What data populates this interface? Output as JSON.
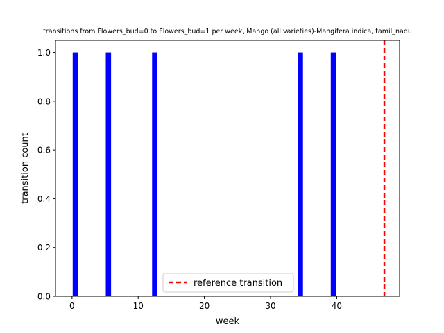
{
  "chart_data": {
    "type": "bar",
    "title": "transitions from Flowers_bud=0 to Flowers_bud=1 per week, Mango (all varieties)-Mangifera indica, tamil_nadu",
    "xlabel": "week",
    "ylabel": "transition count",
    "xlim": [
      -2.5,
      49.5
    ],
    "ylim": [
      0,
      1.05
    ],
    "xticks": [
      0,
      10,
      20,
      30,
      40
    ],
    "yticks": [
      0.0,
      0.2,
      0.4,
      0.6,
      0.8,
      1.0
    ],
    "xtick_labels": [
      "0",
      "10",
      "20",
      "30",
      "40"
    ],
    "ytick_labels": [
      "0.0",
      "0.2",
      "0.4",
      "0.6",
      "0.8",
      "1.0"
    ],
    "bar_width": 0.8,
    "series": [
      {
        "x": [
          0.5,
          5.5,
          12.5,
          34.5,
          39.5
        ],
        "values": [
          1,
          1,
          1,
          1,
          1
        ],
        "color": "#0000ff"
      }
    ],
    "reference_line": {
      "x": 47.2,
      "label": "reference transition",
      "color": "#ff0000",
      "style": "dashed"
    },
    "legend": {
      "placement": "bottom-center",
      "entries": [
        "reference transition"
      ]
    },
    "grid": false
  }
}
